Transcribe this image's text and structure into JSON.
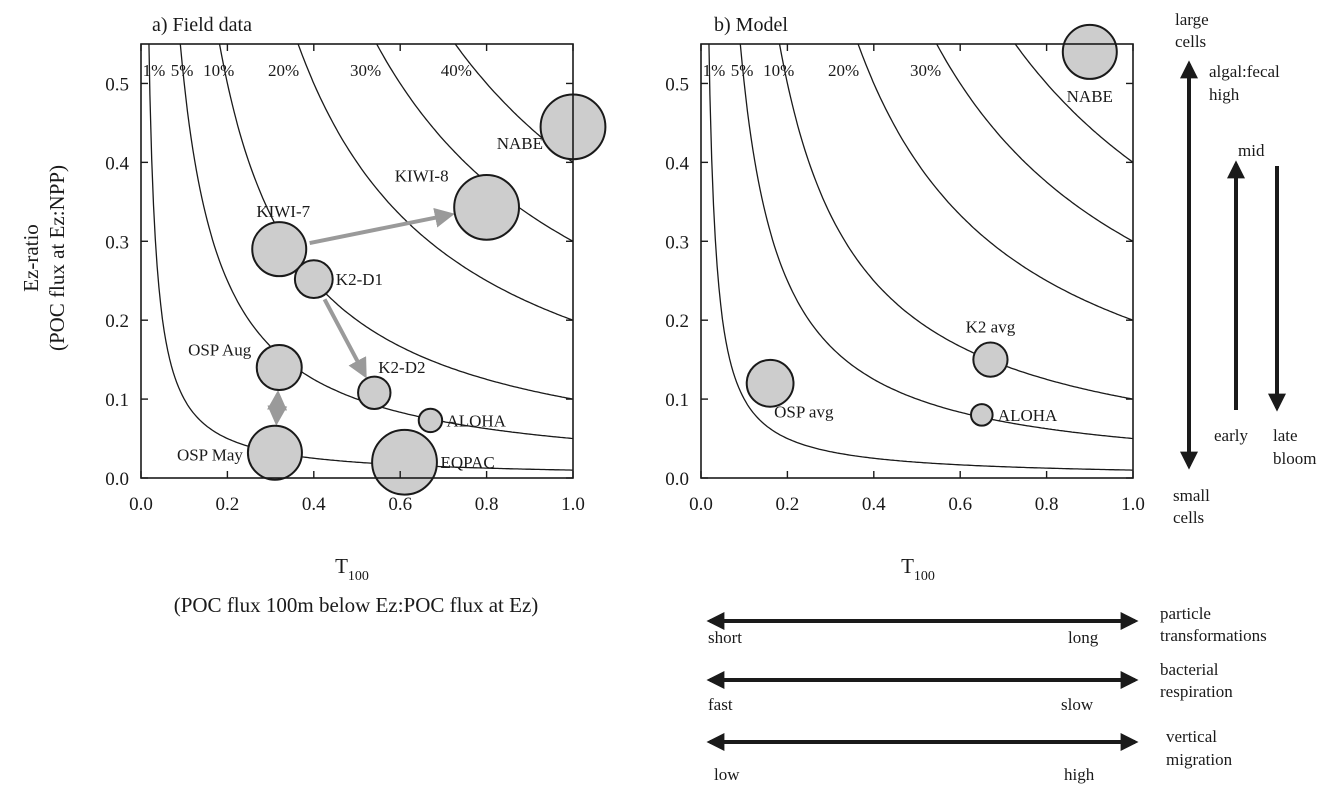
{
  "chart_data": [
    {
      "type": "scatter",
      "title": "a) Field data",
      "xlabel": "T",
      "xlabel_sub": "100",
      "xlabel_note": "(POC flux 100m below Ez:POC flux at Ez)",
      "ylabel": "Ez-ratio",
      "ylabel_note": "(POC flux at Ez:NPP)",
      "xlim": [
        0,
        1.0
      ],
      "ylim": [
        0,
        0.55
      ],
      "xticks": [
        "0.0",
        "0.2",
        "0.4",
        "0.6",
        "0.8",
        "1.0"
      ],
      "yticks": [
        "0.0",
        "0.1",
        "0.2",
        "0.3",
        "0.4",
        "0.5"
      ],
      "contours": [
        {
          "label": "1%",
          "value": 0.01
        },
        {
          "label": "5%",
          "value": 0.05
        },
        {
          "label": "10%",
          "value": 0.1
        },
        {
          "label": "20%",
          "value": 0.2
        },
        {
          "label": "30%",
          "value": 0.3
        },
        {
          "label": "40%",
          "value": 0.4
        }
      ],
      "points": [
        {
          "name": "NABE",
          "x": 1.0,
          "y": 0.445,
          "size": 36
        },
        {
          "name": "KIWI-8",
          "x": 0.8,
          "y": 0.343,
          "size": 36
        },
        {
          "name": "KIWI-7",
          "x": 0.32,
          "y": 0.29,
          "size": 30
        },
        {
          "name": "K2-D1",
          "x": 0.4,
          "y": 0.252,
          "size": 21
        },
        {
          "name": "OSP Aug",
          "x": 0.32,
          "y": 0.14,
          "size": 25
        },
        {
          "name": "K2-D2",
          "x": 0.54,
          "y": 0.108,
          "size": 18
        },
        {
          "name": "ALOHA",
          "x": 0.67,
          "y": 0.073,
          "size": 13
        },
        {
          "name": "OSP May",
          "x": 0.31,
          "y": 0.032,
          "size": 30
        },
        {
          "name": "EQPAC",
          "x": 0.61,
          "y": 0.02,
          "size": 36
        }
      ],
      "arrows": [
        {
          "from": "KIWI-7",
          "to": "KIWI-8"
        },
        {
          "from": "K2-D1",
          "to": "K2-D2"
        },
        {
          "from": "OSP Aug",
          "to": "OSP May",
          "both": true
        }
      ]
    },
    {
      "type": "scatter",
      "title": "b) Model",
      "xlabel": "T",
      "xlabel_sub": "100",
      "xlim": [
        0,
        1.0
      ],
      "ylim": [
        0,
        0.55
      ],
      "xticks": [
        "0.0",
        "0.2",
        "0.4",
        "0.6",
        "0.8",
        "1.0"
      ],
      "yticks": [
        "0.0",
        "0.1",
        "0.2",
        "0.3",
        "0.4",
        "0.5"
      ],
      "contours": [
        {
          "label": "1%",
          "value": 0.01
        },
        {
          "label": "5%",
          "value": 0.05
        },
        {
          "label": "10%",
          "value": 0.1
        },
        {
          "label": "20%",
          "value": 0.2
        },
        {
          "label": "30%",
          "value": 0.3
        },
        {
          "label": "",
          "value": 0.4
        }
      ],
      "points": [
        {
          "name": "NABE",
          "x": 0.9,
          "y": 0.54,
          "size": 30
        },
        {
          "name": "K2 avg",
          "x": 0.67,
          "y": 0.15,
          "size": 19
        },
        {
          "name": "OSP avg",
          "x": 0.16,
          "y": 0.12,
          "size": 26
        },
        {
          "name": "ALOHA",
          "x": 0.65,
          "y": 0.08,
          "size": 12
        }
      ]
    }
  ],
  "legend": {
    "vertical_arrow": {
      "top": [
        "large",
        "cells"
      ],
      "top_right": [
        "algal:fecal",
        "high"
      ],
      "bottom": [
        "small",
        "cells"
      ]
    },
    "bloom": {
      "mid": "mid",
      "early": "early",
      "late": [
        "late",
        "bloom"
      ]
    },
    "horizontal_arrows": [
      {
        "left": "short",
        "right": "long",
        "label": [
          "particle",
          "transformations"
        ]
      },
      {
        "left": "fast",
        "right": "slow",
        "label": [
          "bacterial",
          "respiration"
        ]
      },
      {
        "left": "low",
        "right": "high",
        "label": [
          "vertical",
          "migration"
        ]
      }
    ]
  }
}
